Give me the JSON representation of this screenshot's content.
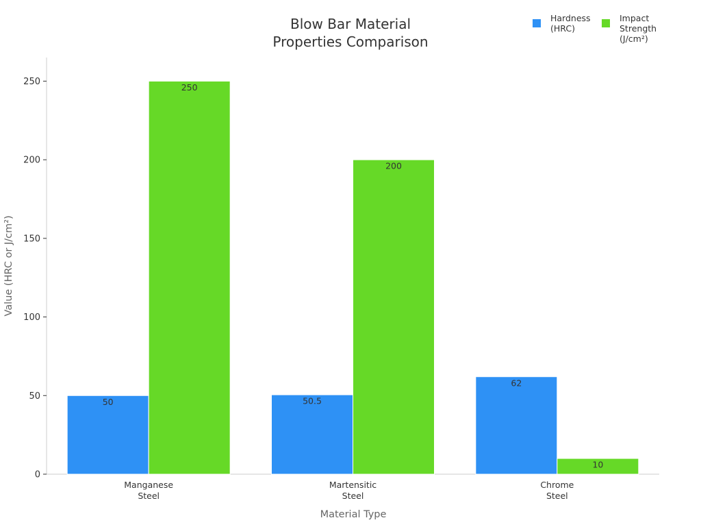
{
  "chart_data": {
    "type": "bar",
    "title": [
      "Blow Bar Material",
      "Properties Comparison"
    ],
    "xlabel": "Material Type",
    "ylabel": "Value (HRC or J/cm²)",
    "categories": [
      [
        "Manganese",
        "Steel"
      ],
      [
        "Martensitic",
        "Steel"
      ],
      [
        "Chrome",
        "Steel"
      ]
    ],
    "series": [
      {
        "name": [
          "Hardness",
          "(HRC)"
        ],
        "color": "#2e91f5",
        "values": [
          50,
          50.5,
          62
        ]
      },
      {
        "name": [
          "Impact",
          "Strength",
          "(J/cm²)"
        ],
        "color": "#66d927",
        "values": [
          250,
          200,
          10
        ]
      }
    ],
    "ylim": [
      0,
      265
    ],
    "yticks": [
      0,
      50,
      100,
      150,
      200,
      250
    ],
    "grid": false,
    "legend_position": "top-right"
  }
}
